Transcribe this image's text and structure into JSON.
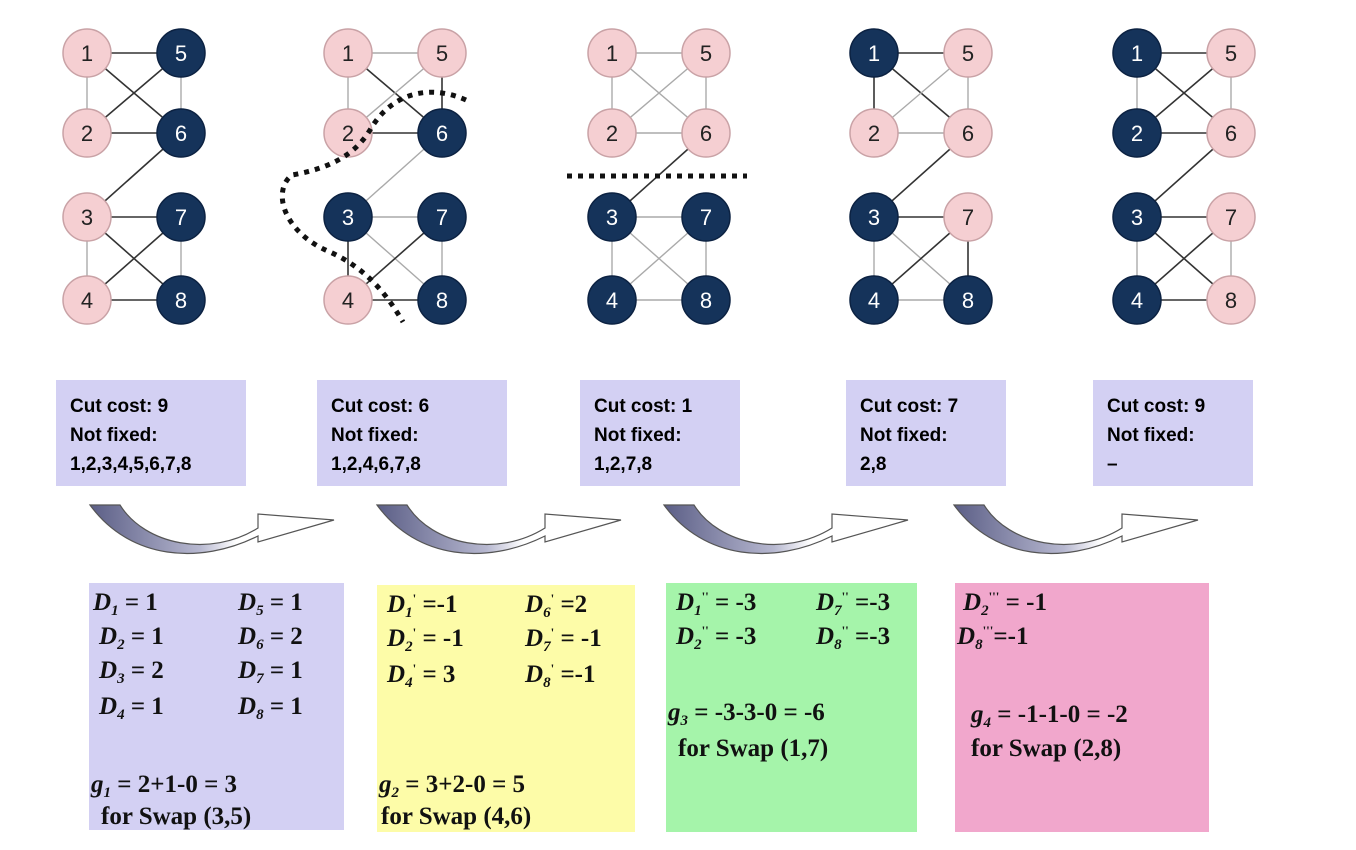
{
  "colors": {
    "dark_node": "#15335a",
    "light_node": "#f5cfd2",
    "box_purple": "#d3d0f3",
    "box_yellow": "#fdfca8",
    "box_green": "#a5f4aa",
    "box_pink": "#f1a7cc"
  },
  "stages": [
    {
      "cut_cost": "Cut cost: 9",
      "not_fixed_label": "Not fixed:",
      "not_fixed": "1,2,3,4,5,6,7,8",
      "dark": [
        5,
        6,
        7,
        8
      ]
    },
    {
      "cut_cost": "Cut cost: 6",
      "not_fixed_label": "Not fixed:",
      "not_fixed": "1,2,4,6,7,8",
      "dark": [
        6,
        3,
        7,
        8
      ]
    },
    {
      "cut_cost": "Cut cost: 1",
      "not_fixed_label": "Not fixed:",
      "not_fixed": "1,2,7,8",
      "dark": [
        3,
        7,
        4,
        8
      ]
    },
    {
      "cut_cost": "Cut cost: 7",
      "not_fixed_label": "Not fixed:",
      "not_fixed": "2,8",
      "dark": [
        1,
        3,
        4,
        8
      ]
    },
    {
      "cut_cost": "Cut cost: 9",
      "not_fixed_label": "Not fixed:",
      "not_fixed": "–",
      "dark": [
        1,
        2,
        3,
        4
      ]
    }
  ],
  "node_labels": [
    "1",
    "2",
    "3",
    "4",
    "5",
    "6",
    "7",
    "8"
  ],
  "calc1": {
    "d1": "= 1",
    "d2": "= 1",
    "d3": "= 2",
    "d4": "= 1",
    "d5": "= 1",
    "d6": "= 2",
    "d7": "= 1",
    "d8": "= 1",
    "gain": "= 2+1-0 = 3",
    "swap": "for Swap (3,5)"
  },
  "calc2": {
    "d1": "=-1",
    "d2": "= -1",
    "d4": "= 3",
    "d6": "=2",
    "d7": "= -1",
    "d8": "=-1",
    "gain": "= 3+2-0 = 5",
    "swap": "for  Swap (4,6)"
  },
  "calc3": {
    "d1": "= -3",
    "d2": "= -3",
    "d7": "=-3",
    "d8": "=-3",
    "gain": "= -3-3-0 = -6",
    "swap": "for Swap (1,7)"
  },
  "calc4": {
    "d2": "= -1",
    "d8": "=-1",
    "gain": "= -1-1-0 = -2",
    "swap": "for Swap (2,8)"
  }
}
